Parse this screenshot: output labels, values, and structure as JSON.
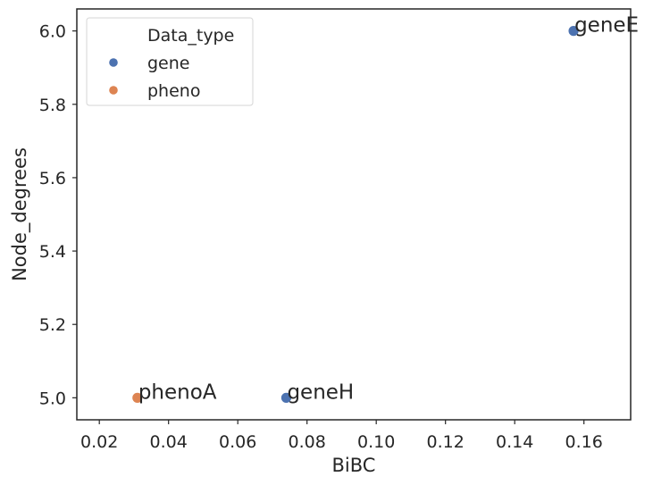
{
  "chart_data": {
    "type": "scatter",
    "title": "",
    "xlabel": "BiBC",
    "ylabel": "Node_degrees",
    "xlim": [
      0.0135,
      0.1735
    ],
    "ylim": [
      4.94,
      6.06
    ],
    "xticks": [
      0.02,
      0.04,
      0.06,
      0.08,
      0.1,
      0.12,
      0.14,
      0.16
    ],
    "xtick_labels": [
      "0.02",
      "0.04",
      "0.06",
      "0.08",
      "0.10",
      "0.12",
      "0.14",
      "0.16"
    ],
    "yticks": [
      5.0,
      5.2,
      5.4,
      5.6,
      5.8,
      6.0
    ],
    "ytick_labels": [
      "5.0",
      "5.2",
      "5.4",
      "5.6",
      "5.8",
      "6.0"
    ],
    "grid": false,
    "legend": {
      "title": "Data_type",
      "placement": "top-left",
      "entries": [
        {
          "name": "gene",
          "color": "#4c72b0"
        },
        {
          "name": "pheno",
          "color": "#dd8452"
        }
      ]
    },
    "points": [
      {
        "label": "phenoA",
        "x": 0.031,
        "y": 5.0,
        "type": "pheno",
        "color": "#dd8452"
      },
      {
        "label": "geneH",
        "x": 0.074,
        "y": 5.0,
        "type": "gene",
        "color": "#4c72b0"
      },
      {
        "label": "geneE",
        "x": 0.157,
        "y": 6.0,
        "type": "gene",
        "color": "#4c72b0"
      }
    ]
  }
}
